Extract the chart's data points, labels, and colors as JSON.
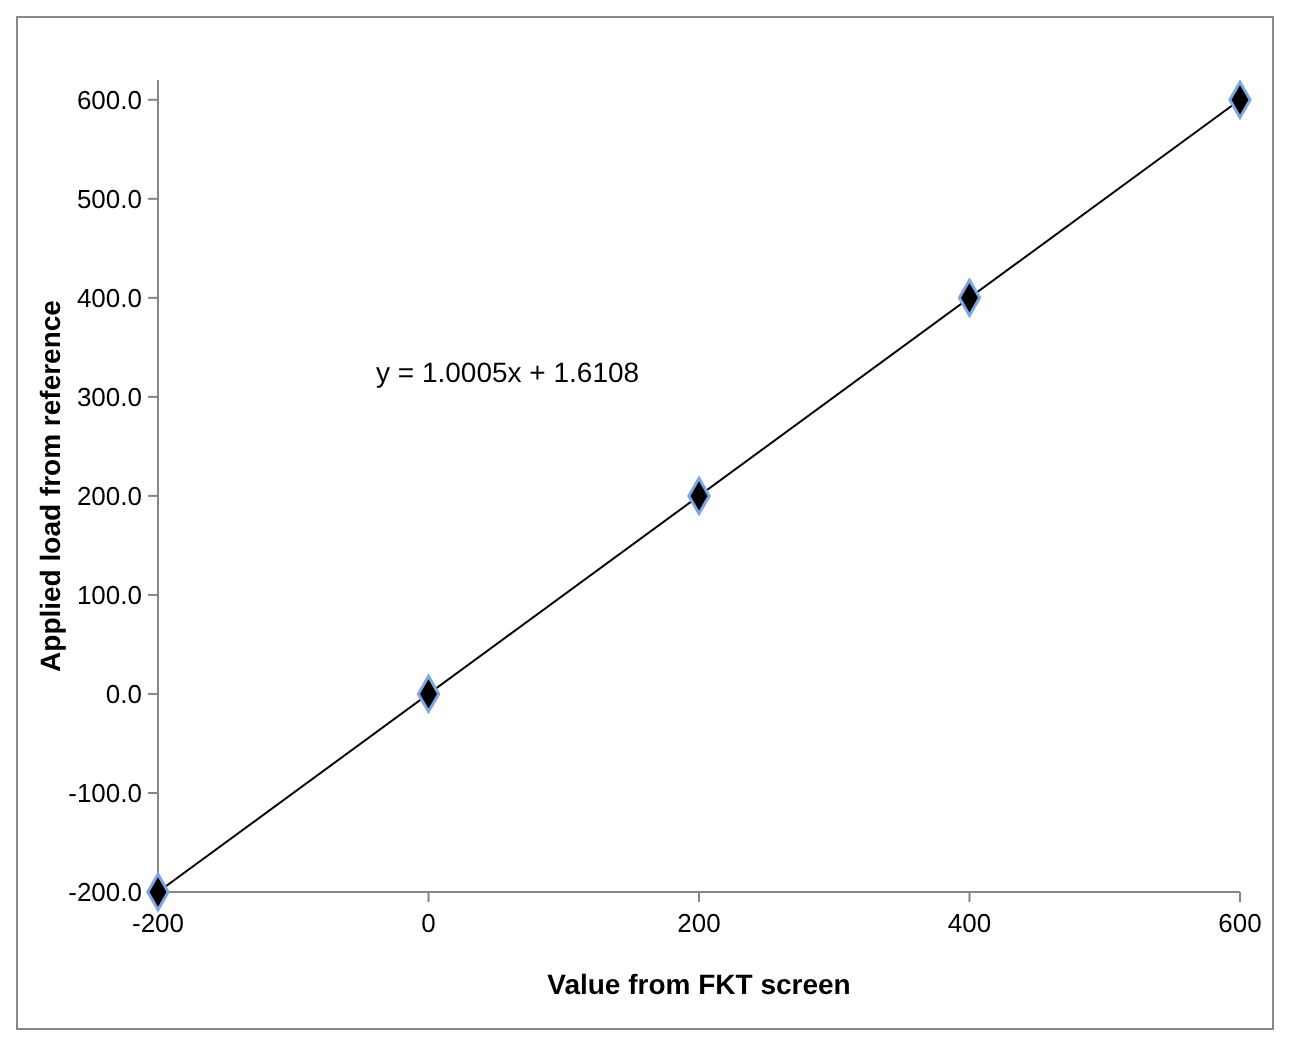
{
  "chart_data": {
    "type": "scatter",
    "xlabel": "Value from FKT screen",
    "ylabel": "Applied load from reference",
    "x": [
      -200,
      0,
      200,
      400,
      600
    ],
    "series": [
      {
        "color": "#000000",
        "values": [
          -200,
          0,
          200,
          400,
          600
        ],
        "marker": "diamond"
      },
      {
        "type": "line",
        "color": "#000000",
        "x": [
          -200,
          600
        ],
        "values": [
          -200,
          600
        ],
        "marker": "none"
      }
    ],
    "xlim": [
      -200,
      600
    ],
    "xticks": [
      -200,
      0,
      200,
      400,
      600
    ],
    "ylim": [
      -200,
      620
    ],
    "yticks": [
      {
        "value": -200,
        "label": "-200.0"
      },
      {
        "value": -100,
        "label": "-100.0"
      },
      {
        "value": 0,
        "label": "0.0"
      },
      {
        "value": 100,
        "label": "100.0"
      },
      {
        "value": 200,
        "label": "200.0"
      },
      {
        "value": 300,
        "label": "300.0"
      },
      {
        "value": 400,
        "label": "400.0"
      },
      {
        "value": 500,
        "label": "500.0"
      },
      {
        "value": 600,
        "label": "600.0"
      }
    ],
    "annotations": [
      "y = 1.0005x + 1.6108"
    ],
    "grid": false
  }
}
